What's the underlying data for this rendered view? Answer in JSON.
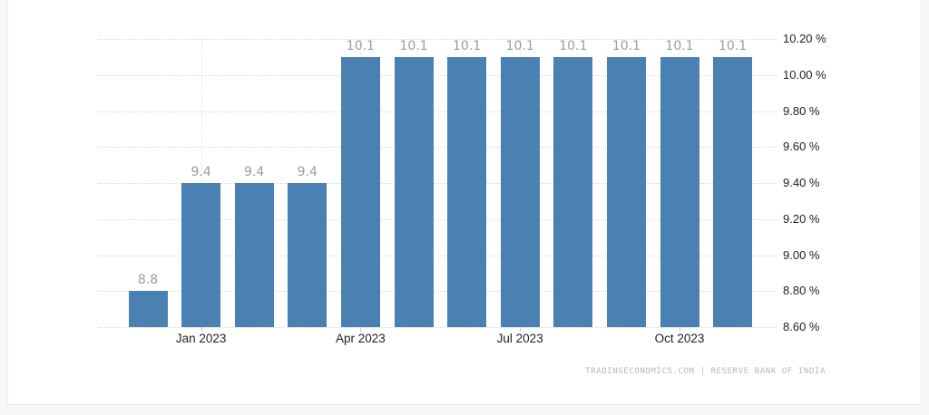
{
  "chart_data": {
    "type": "bar",
    "values": [
      8.8,
      9.4,
      9.4,
      9.4,
      10.1,
      10.1,
      10.1,
      10.1,
      10.1,
      10.1,
      10.1,
      10.1
    ],
    "bar_labels": [
      "8.8",
      "9.4",
      "9.4",
      "9.4",
      "10.1",
      "10.1",
      "10.1",
      "10.1",
      "10.1",
      "10.1",
      "10.1",
      "10.1"
    ],
    "x_ticks": [
      {
        "label": "Jan 2023",
        "index": 1
      },
      {
        "label": "Apr 2023",
        "index": 4
      },
      {
        "label": "Jul 2023",
        "index": 7
      },
      {
        "label": "Oct 2023",
        "index": 10
      }
    ],
    "y_ticks": [
      "10.20 %",
      "10.00 %",
      "9.80 %",
      "9.60 %",
      "9.40 %",
      "9.20 %",
      "9.00 %",
      "8.80 %",
      "8.60 %"
    ],
    "ylim": [
      8.6,
      10.2
    ],
    "grid": true,
    "legend": "none",
    "title": "",
    "xlabel": "",
    "ylabel": "",
    "bar_color": "#4a80b2",
    "attribution": "TRADINGECONOMICS.COM | RESERVE BANK OF INDIA"
  }
}
